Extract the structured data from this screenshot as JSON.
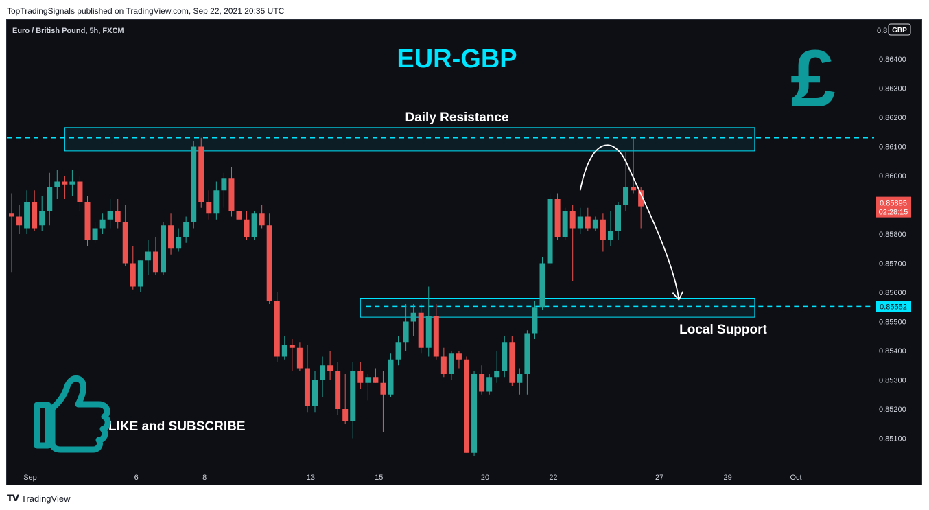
{
  "publisher_line": "TopTradingSignals published on TradingView.com, Sep 22, 2021 20:35 UTC",
  "footer": {
    "brand": "TradingView",
    "logo_icon": "tradingview-logo-icon"
  },
  "colors": {
    "bull": "#26a69a",
    "bear": "#ef5350",
    "accent": "#00e5ff",
    "background": "#0e0f15",
    "brand_teal": "#0e9a9a"
  },
  "overlay": {
    "title": "EUR-GBP",
    "resistance_label": "Daily Resistance",
    "support_label": "Local Support",
    "cta_label": "LIKE and SUBSCRIBE",
    "cta_icon": "thumbs-up-icon",
    "currency_icon": "pound-sign-icon"
  },
  "chart_data": {
    "type": "candlestick",
    "symbol_line": "Euro / British Pound, 5h, FXCM",
    "currency_badge": "GBP",
    "top_price_label": "0.8",
    "y_ticks": [
      0.864,
      0.863,
      0.862,
      0.861,
      0.86,
      0.859,
      0.858,
      0.857,
      0.856,
      0.855,
      0.854,
      0.853,
      0.852,
      0.851
    ],
    "y_tick_labels": [
      "0.86400",
      "0.86300",
      "0.86200",
      "0.86100",
      "0.86000",
      "0.85900",
      "0.85800",
      "0.85700",
      "0.85600",
      "0.85500",
      "0.85400",
      "0.85300",
      "0.85200",
      "0.85100"
    ],
    "x_ticks": [
      0,
      14,
      23,
      37,
      46,
      60,
      69,
      83,
      92,
      101
    ],
    "x_tick_labels": [
      "Sep",
      "6",
      "8",
      "13",
      "15",
      "20",
      "22",
      "27",
      "29",
      "Oct"
    ],
    "current_price": 0.85895,
    "current_price_label": "0.85895",
    "countdown_label": "02:28:15",
    "support_level": 0.85552,
    "support_level_label": "0.85552",
    "resistance_level": 0.8613,
    "resistance_zone": {
      "from_index": 7,
      "to_index": 98,
      "top": 0.86165,
      "bottom": 0.86085
    },
    "support_zone": {
      "from_index": 46,
      "to_index": 98,
      "top": 0.8558,
      "bottom": 0.85515
    },
    "forecast_path": {
      "start_index": 75,
      "start_price": 0.8595,
      "peak_index": 78.5,
      "peak_price": 0.86085,
      "end_index": 88,
      "end_price": 0.85575
    },
    "candles": [
      {
        "o": 0.8587,
        "h": 0.8594,
        "l": 0.8567,
        "c": 0.8586
      },
      {
        "o": 0.8586,
        "h": 0.859,
        "l": 0.858,
        "c": 0.8583
      },
      {
        "o": 0.8582,
        "h": 0.8595,
        "l": 0.858,
        "c": 0.8591
      },
      {
        "o": 0.8591,
        "h": 0.8595,
        "l": 0.8581,
        "c": 0.8582
      },
      {
        "o": 0.8583,
        "h": 0.8593,
        "l": 0.8581,
        "c": 0.8588
      },
      {
        "o": 0.8588,
        "h": 0.8601,
        "l": 0.8583,
        "c": 0.8596
      },
      {
        "o": 0.8596,
        "h": 0.8602,
        "l": 0.8592,
        "c": 0.8598
      },
      {
        "o": 0.8598,
        "h": 0.86,
        "l": 0.8592,
        "c": 0.8597
      },
      {
        "o": 0.8597,
        "h": 0.8602,
        "l": 0.8593,
        "c": 0.8598
      },
      {
        "o": 0.8598,
        "h": 0.86,
        "l": 0.8588,
        "c": 0.8591
      },
      {
        "o": 0.8591,
        "h": 0.8593,
        "l": 0.8576,
        "c": 0.8578
      },
      {
        "o": 0.8578,
        "h": 0.8584,
        "l": 0.8577,
        "c": 0.8582
      },
      {
        "o": 0.8582,
        "h": 0.8587,
        "l": 0.858,
        "c": 0.8585
      },
      {
        "o": 0.8585,
        "h": 0.8592,
        "l": 0.8582,
        "c": 0.8588
      },
      {
        "o": 0.8588,
        "h": 0.8592,
        "l": 0.8582,
        "c": 0.8584
      },
      {
        "o": 0.8584,
        "h": 0.859,
        "l": 0.8569,
        "c": 0.857
      },
      {
        "o": 0.857,
        "h": 0.8576,
        "l": 0.8561,
        "c": 0.8562
      },
      {
        "o": 0.8562,
        "h": 0.8571,
        "l": 0.856,
        "c": 0.8571
      },
      {
        "o": 0.8571,
        "h": 0.8578,
        "l": 0.8566,
        "c": 0.8574
      },
      {
        "o": 0.8574,
        "h": 0.8579,
        "l": 0.8566,
        "c": 0.8567
      },
      {
        "o": 0.8567,
        "h": 0.8584,
        "l": 0.8566,
        "c": 0.8583
      },
      {
        "o": 0.8583,
        "h": 0.8587,
        "l": 0.8573,
        "c": 0.8575
      },
      {
        "o": 0.8575,
        "h": 0.8582,
        "l": 0.8574,
        "c": 0.8579
      },
      {
        "o": 0.8579,
        "h": 0.8586,
        "l": 0.8577,
        "c": 0.8584
      },
      {
        "o": 0.8584,
        "h": 0.8612,
        "l": 0.8582,
        "c": 0.861
      },
      {
        "o": 0.861,
        "h": 0.8613,
        "l": 0.8589,
        "c": 0.8591
      },
      {
        "o": 0.8591,
        "h": 0.8595,
        "l": 0.8585,
        "c": 0.8587
      },
      {
        "o": 0.8587,
        "h": 0.8598,
        "l": 0.8585,
        "c": 0.8595
      },
      {
        "o": 0.8595,
        "h": 0.8601,
        "l": 0.8589,
        "c": 0.8599
      },
      {
        "o": 0.8599,
        "h": 0.8603,
        "l": 0.8586,
        "c": 0.8588
      },
      {
        "o": 0.8588,
        "h": 0.8595,
        "l": 0.8582,
        "c": 0.8585
      },
      {
        "o": 0.8585,
        "h": 0.8588,
        "l": 0.8578,
        "c": 0.8579
      },
      {
        "o": 0.8579,
        "h": 0.8588,
        "l": 0.8578,
        "c": 0.8587
      },
      {
        "o": 0.8587,
        "h": 0.859,
        "l": 0.8582,
        "c": 0.8583
      },
      {
        "o": 0.8583,
        "h": 0.8587,
        "l": 0.8556,
        "c": 0.8557
      },
      {
        "o": 0.8557,
        "h": 0.856,
        "l": 0.8536,
        "c": 0.8538
      },
      {
        "o": 0.8538,
        "h": 0.8545,
        "l": 0.8537,
        "c": 0.8542
      },
      {
        "o": 0.8542,
        "h": 0.8544,
        "l": 0.8533,
        "c": 0.8541
      },
      {
        "o": 0.8541,
        "h": 0.8543,
        "l": 0.8533,
        "c": 0.8534
      },
      {
        "o": 0.8534,
        "h": 0.8542,
        "l": 0.8519,
        "c": 0.8521
      },
      {
        "o": 0.8521,
        "h": 0.8533,
        "l": 0.8519,
        "c": 0.853
      },
      {
        "o": 0.853,
        "h": 0.8538,
        "l": 0.8524,
        "c": 0.8535
      },
      {
        "o": 0.8535,
        "h": 0.854,
        "l": 0.853,
        "c": 0.8533
      },
      {
        "o": 0.8533,
        "h": 0.8536,
        "l": 0.8518,
        "c": 0.852
      },
      {
        "o": 0.852,
        "h": 0.8532,
        "l": 0.8515,
        "c": 0.8516
      },
      {
        "o": 0.8516,
        "h": 0.8536,
        "l": 0.851,
        "c": 0.8533
      },
      {
        "o": 0.8533,
        "h": 0.8536,
        "l": 0.8527,
        "c": 0.8529
      },
      {
        "o": 0.8529,
        "h": 0.8532,
        "l": 0.8523,
        "c": 0.8531
      },
      {
        "o": 0.8531,
        "h": 0.8534,
        "l": 0.8529,
        "c": 0.8529
      },
      {
        "o": 0.8529,
        "h": 0.8533,
        "l": 0.8512,
        "c": 0.8525
      },
      {
        "o": 0.8525,
        "h": 0.8539,
        "l": 0.8524,
        "c": 0.8537
      },
      {
        "o": 0.8537,
        "h": 0.8545,
        "l": 0.8535,
        "c": 0.8543
      },
      {
        "o": 0.8543,
        "h": 0.8556,
        "l": 0.854,
        "c": 0.855
      },
      {
        "o": 0.855,
        "h": 0.8556,
        "l": 0.8545,
        "c": 0.8553
      },
      {
        "o": 0.8553,
        "h": 0.8556,
        "l": 0.8539,
        "c": 0.8541
      },
      {
        "o": 0.8541,
        "h": 0.8562,
        "l": 0.8538,
        "c": 0.8552
      },
      {
        "o": 0.8552,
        "h": 0.8556,
        "l": 0.8537,
        "c": 0.8538
      },
      {
        "o": 0.8538,
        "h": 0.8541,
        "l": 0.8531,
        "c": 0.8532
      },
      {
        "o": 0.8532,
        "h": 0.854,
        "l": 0.853,
        "c": 0.8539
      },
      {
        "o": 0.8539,
        "h": 0.854,
        "l": 0.8534,
        "c": 0.8537
      },
      {
        "o": 0.8537,
        "h": 0.8538,
        "l": 0.8505,
        "c": 0.8505
      },
      {
        "o": 0.8505,
        "h": 0.8533,
        "l": 0.8504,
        "c": 0.8532
      },
      {
        "o": 0.8532,
        "h": 0.8535,
        "l": 0.8525,
        "c": 0.8526
      },
      {
        "o": 0.8526,
        "h": 0.8532,
        "l": 0.8525,
        "c": 0.8531
      },
      {
        "o": 0.8531,
        "h": 0.854,
        "l": 0.8529,
        "c": 0.8533
      },
      {
        "o": 0.8533,
        "h": 0.8545,
        "l": 0.8531,
        "c": 0.8543
      },
      {
        "o": 0.8543,
        "h": 0.8545,
        "l": 0.8528,
        "c": 0.8529
      },
      {
        "o": 0.8529,
        "h": 0.8534,
        "l": 0.8525,
        "c": 0.8532
      },
      {
        "o": 0.8532,
        "h": 0.8547,
        "l": 0.8525,
        "c": 0.8546
      },
      {
        "o": 0.8546,
        "h": 0.8557,
        "l": 0.8544,
        "c": 0.8555
      },
      {
        "o": 0.8555,
        "h": 0.8572,
        "l": 0.8554,
        "c": 0.857
      },
      {
        "o": 0.857,
        "h": 0.8594,
        "l": 0.8569,
        "c": 0.8592
      },
      {
        "o": 0.8592,
        "h": 0.8594,
        "l": 0.8578,
        "c": 0.8579
      },
      {
        "o": 0.8579,
        "h": 0.8589,
        "l": 0.8578,
        "c": 0.8588
      },
      {
        "o": 0.8588,
        "h": 0.859,
        "l": 0.8564,
        "c": 0.8582
      },
      {
        "o": 0.8582,
        "h": 0.8589,
        "l": 0.858,
        "c": 0.8586
      },
      {
        "o": 0.8586,
        "h": 0.8589,
        "l": 0.8581,
        "c": 0.8582
      },
      {
        "o": 0.8582,
        "h": 0.8586,
        "l": 0.8581,
        "c": 0.8585
      },
      {
        "o": 0.8585,
        "h": 0.8587,
        "l": 0.8574,
        "c": 0.8578
      },
      {
        "o": 0.8578,
        "h": 0.8588,
        "l": 0.8576,
        "c": 0.8581
      },
      {
        "o": 0.8581,
        "h": 0.8591,
        "l": 0.8578,
        "c": 0.859
      },
      {
        "o": 0.859,
        "h": 0.8608,
        "l": 0.8588,
        "c": 0.8596
      },
      {
        "o": 0.8596,
        "h": 0.8613,
        "l": 0.8594,
        "c": 0.8595
      },
      {
        "o": 0.8595,
        "h": 0.8596,
        "l": 0.8582,
        "c": 0.85895
      }
    ]
  }
}
